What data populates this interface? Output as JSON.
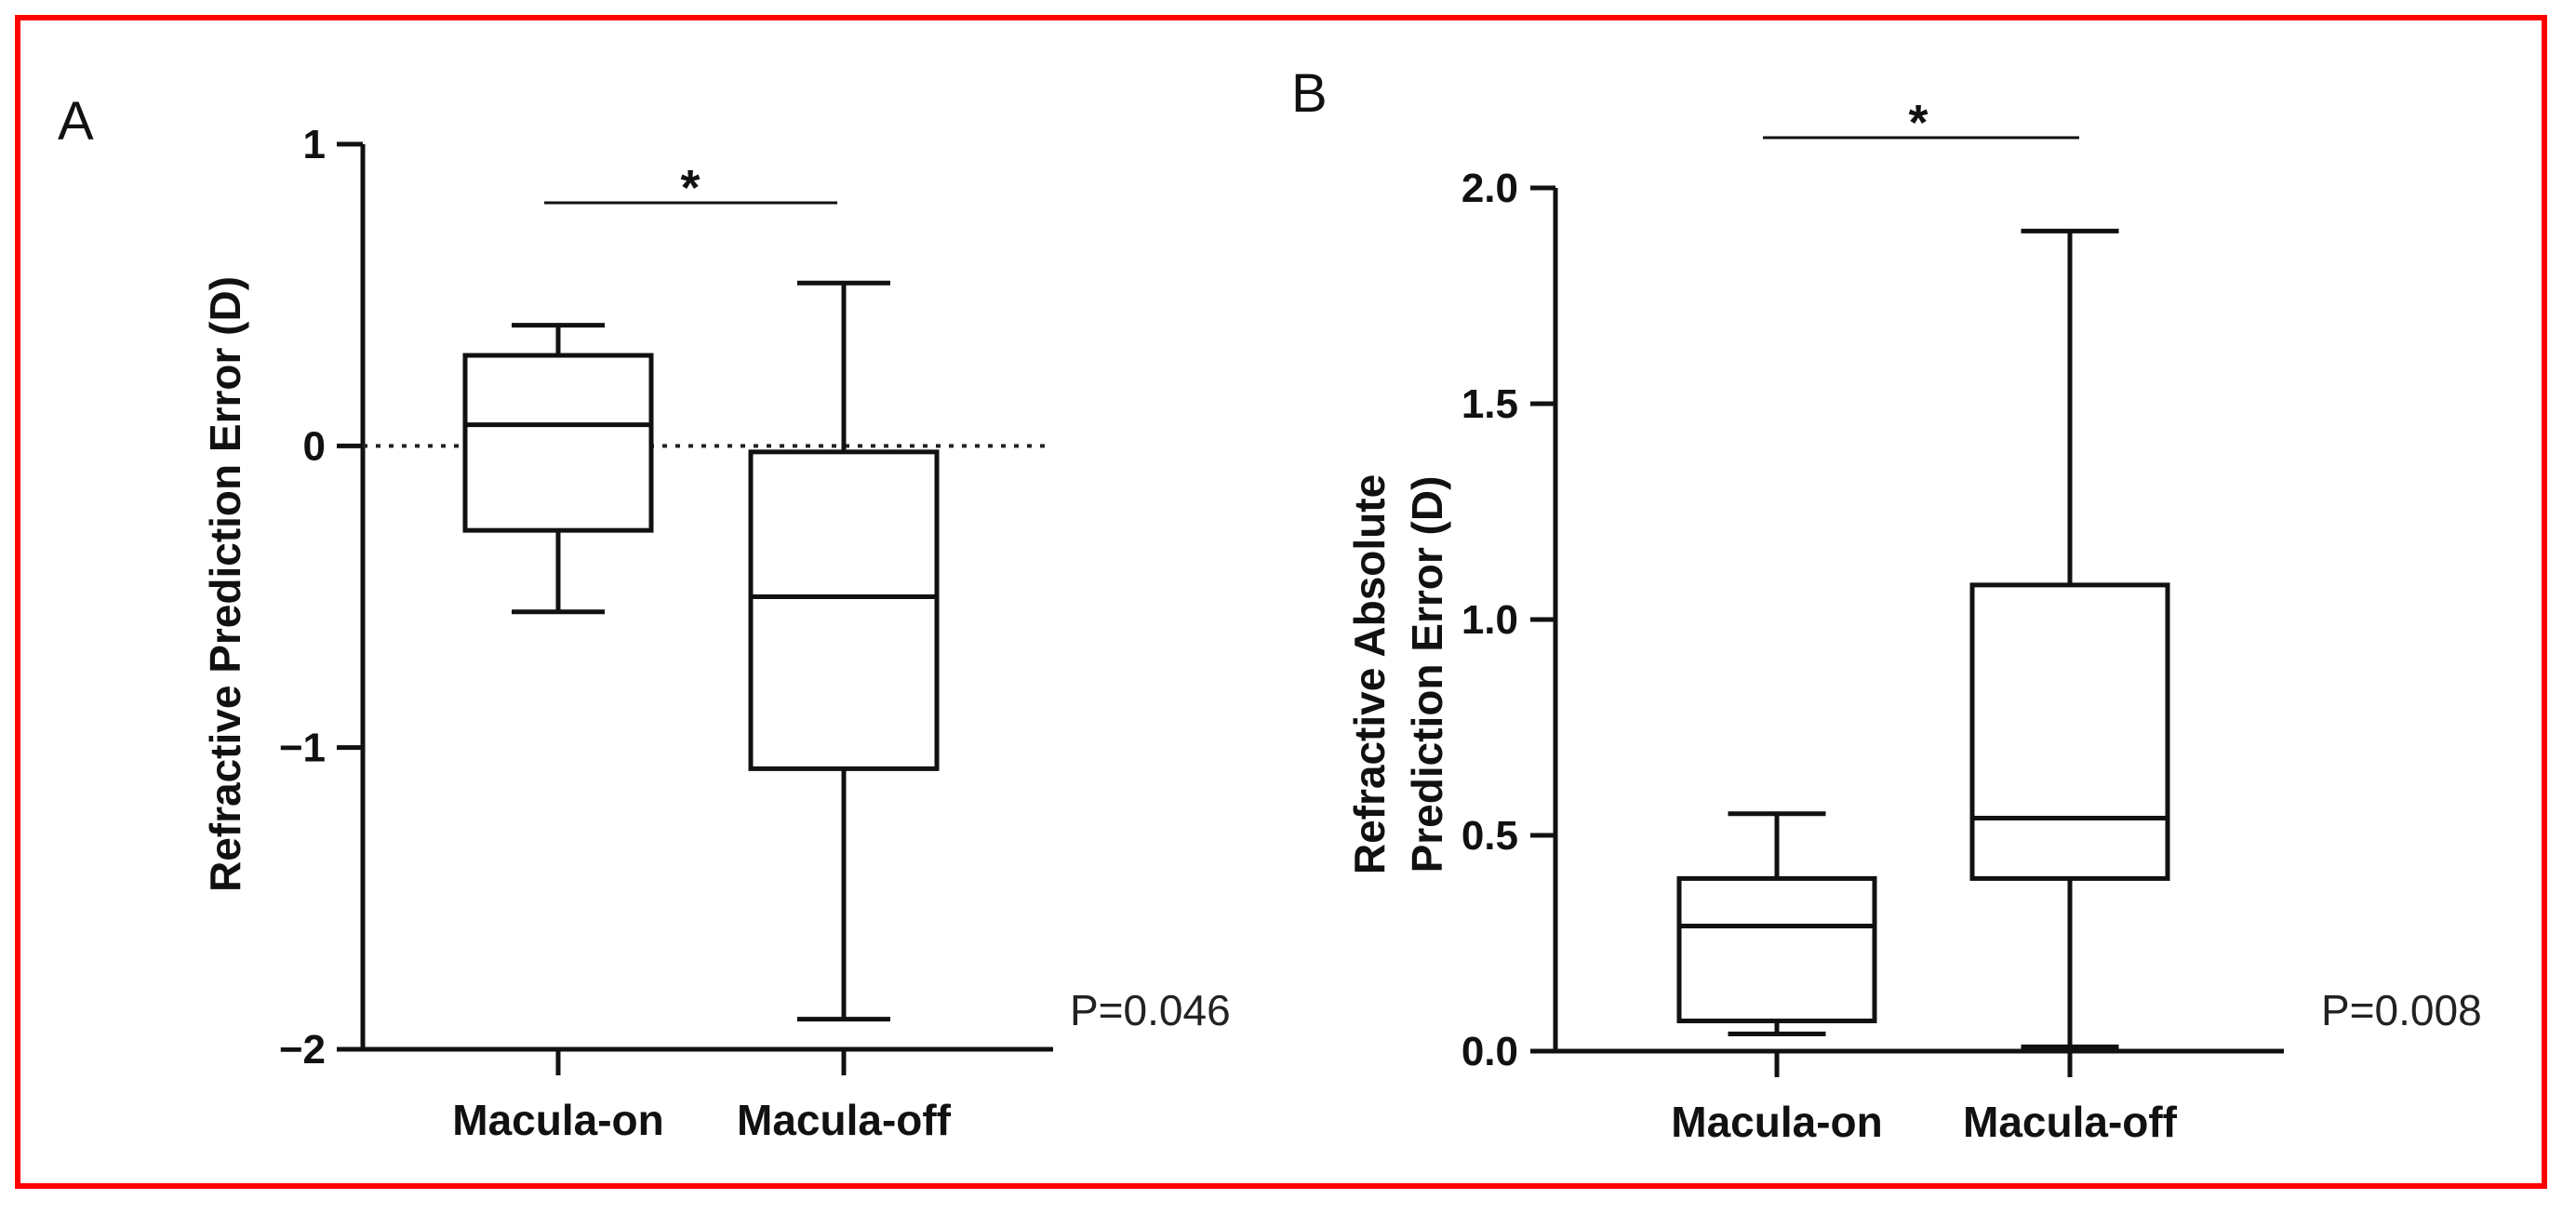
{
  "chart_data": [
    {
      "type": "box",
      "panel_label": "A",
      "ylabel": "Refractive Prediction Error (D)",
      "ylim": [
        -2,
        1
      ],
      "yticks": [
        {
          "value": 1,
          "label": "1"
        },
        {
          "value": 0,
          "label": "0"
        },
        {
          "value": -1,
          "label": "−1"
        },
        {
          "value": -2,
          "label": "−2"
        }
      ],
      "reference_line": 0,
      "categories": [
        "Macula-on",
        "Macula-off"
      ],
      "boxes": [
        {
          "name": "Macula-on",
          "min": -0.55,
          "q1": -0.28,
          "median": 0.07,
          "q3": 0.3,
          "max": 0.4
        },
        {
          "name": "Macula-off",
          "min": -1.9,
          "q1": -1.07,
          "median": -0.5,
          "q3": -0.02,
          "max": 0.54
        }
      ],
      "significance": "*",
      "p_value": "P=0.046"
    },
    {
      "type": "box",
      "panel_label": "B",
      "ylabel_lines": [
        "Refractive Absolute",
        "Prediction Error (D)"
      ],
      "ylim": [
        0,
        2.0
      ],
      "yticks": [
        {
          "value": 2.0,
          "label": "2.0"
        },
        {
          "value": 1.5,
          "label": "1.5"
        },
        {
          "value": 1.0,
          "label": "1.0"
        },
        {
          "value": 0.5,
          "label": "0.5"
        },
        {
          "value": 0.0,
          "label": "0.0"
        }
      ],
      "categories": [
        "Macula-on",
        "Macula-off"
      ],
      "boxes": [
        {
          "name": "Macula-on",
          "min": 0.04,
          "q1": 0.07,
          "median": 0.29,
          "q3": 0.4,
          "max": 0.55
        },
        {
          "name": "Macula-off",
          "min": 0.01,
          "q1": 0.4,
          "median": 0.54,
          "q3": 1.08,
          "max": 1.9
        }
      ],
      "significance": "*",
      "p_value": "P=0.008"
    }
  ]
}
